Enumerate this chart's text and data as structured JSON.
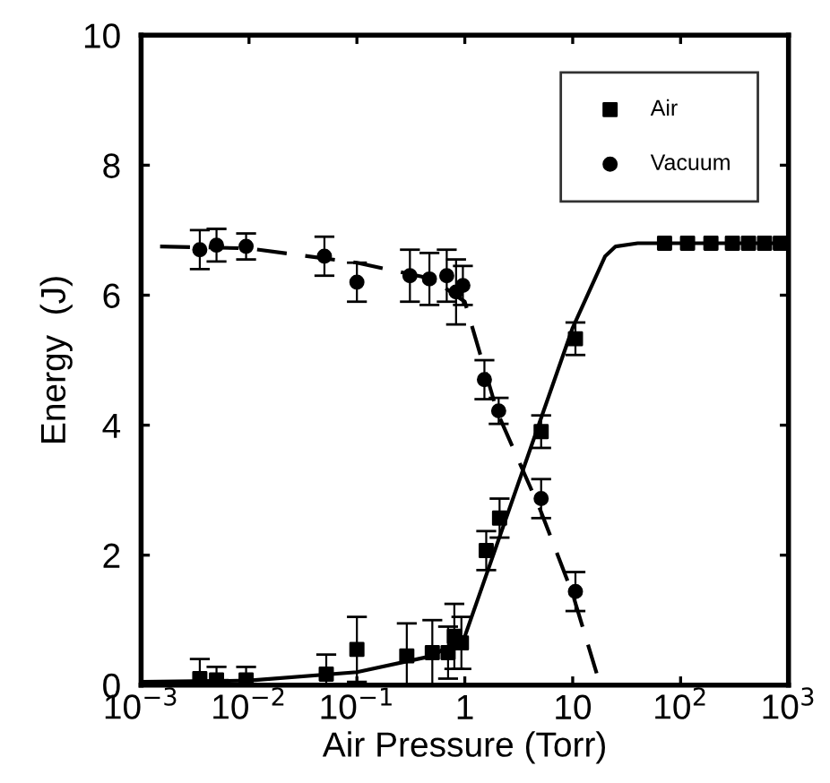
{
  "chart_data": {
    "type": "scatter",
    "xlabel": "Air Pressure (Torr)",
    "ylabel": "Energy  (J)",
    "log": "x",
    "xlim": [
      0.001,
      1000
    ],
    "ylim": [
      0,
      10
    ],
    "xticks": [
      {
        "value": 0.001,
        "label": "10$^{−3}$"
      },
      {
        "value": 0.01,
        "label": "10$^{−2}$"
      },
      {
        "value": 0.1,
        "label": "10$^{−1}$"
      },
      1,
      10,
      {
        "value": 100,
        "label": "10$^{2}$"
      },
      {
        "value": 1000,
        "label": "10$^{3}$"
      }
    ],
    "yticks": [
      0,
      2,
      4,
      6,
      8,
      10
    ],
    "grid": false,
    "legend": "top right",
    "series": [
      {
        "name": "Air",
        "marker": "square",
        "color": "#000000",
        "x": [
          0.0035,
          0.005,
          0.0094,
          0.052,
          0.1,
          0.29,
          0.5,
          0.7,
          0.8,
          0.93,
          1.58,
          2.1,
          5.1,
          10.6,
          71,
          116,
          191,
          302,
          426,
          600,
          840
        ],
        "values": [
          0.1,
          0.08,
          0.08,
          0.17,
          0.55,
          0.45,
          0.5,
          0.5,
          0.75,
          0.65,
          2.07,
          2.57,
          3.9,
          5.33,
          6.8,
          6.8,
          6.8,
          6.8,
          6.8,
          6.8,
          6.8
        ],
        "errors": [
          0.3,
          0.2,
          0.2,
          0.3,
          0.5,
          0.5,
          0.5,
          0.4,
          0.5,
          0.4,
          0.3,
          0.3,
          0.25,
          0.25,
          null,
          null,
          null,
          null,
          null,
          null,
          null
        ]
      },
      {
        "name": "Vacuum",
        "marker": "circle",
        "color": "#000000",
        "x": [
          0.0035,
          0.005,
          0.0094,
          0.05,
          0.1,
          0.31,
          0.47,
          0.68,
          0.83,
          0.96,
          1.52,
          2.06,
          5.1,
          10.6
        ],
        "values": [
          6.7,
          6.77,
          6.75,
          6.6,
          6.2,
          6.3,
          6.25,
          6.3,
          6.05,
          6.15,
          4.7,
          4.22,
          2.87,
          1.44
        ],
        "errors": [
          0.3,
          0.25,
          0.2,
          0.3,
          0.3,
          0.4,
          0.4,
          0.4,
          0.5,
          0.3,
          0.3,
          0.2,
          0.3,
          0.3
        ]
      },
      {
        "type": "line",
        "line_style": "solid",
        "color": "#000000",
        "x": [
          0.001,
          0.01,
          0.1,
          0.5,
          1,
          10,
          20,
          25,
          40,
          1000
        ],
        "values": [
          0.05,
          0.07,
          0.2,
          0.45,
          0.75,
          5.5,
          6.6,
          6.75,
          6.8,
          6.8
        ]
      },
      {
        "type": "line",
        "line_style": "dashed",
        "color": "#000000",
        "x": [
          0.0015,
          0.01,
          0.1,
          0.5,
          1,
          2,
          5,
          10,
          18
        ],
        "values": [
          6.75,
          6.72,
          6.5,
          6.25,
          5.9,
          4.2,
          2.7,
          1.4,
          0
        ]
      }
    ]
  }
}
